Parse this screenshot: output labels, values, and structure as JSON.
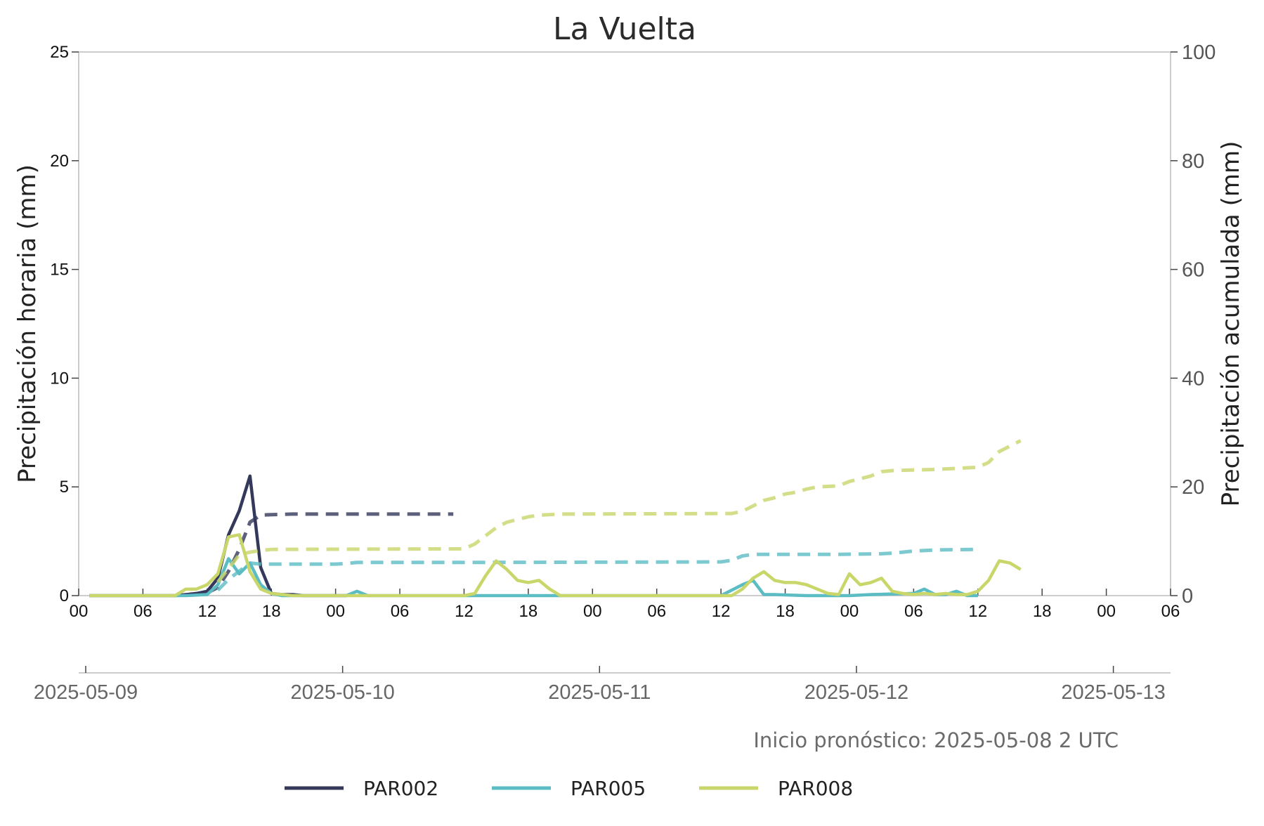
{
  "chart_data": {
    "type": "line",
    "title": "La Vuelta",
    "ylabel": "Precipitación horaria (mm)",
    "ylabel_right": "Precipitación acumulada (mm)",
    "ylim": [
      0,
      25
    ],
    "ylim_right": [
      0,
      100
    ],
    "yticks": [
      "0",
      "5",
      "10",
      "15",
      "20",
      "25"
    ],
    "yticks_right": [
      "0",
      "20",
      "40",
      "60",
      "80",
      "100"
    ],
    "xlim": [
      "2025-05-09 00:00",
      "2025-05-13 06:00"
    ],
    "xticks_hours": [
      "00",
      "06",
      "12",
      "18",
      "00",
      "06",
      "12",
      "18",
      "00",
      "06",
      "12",
      "18",
      "00",
      "06",
      "12",
      "18",
      "00",
      "06"
    ],
    "xticks_dates": [
      "2025-05-09",
      "2025-05-10",
      "2025-05-11",
      "2025-05-12",
      "2025-05-13"
    ],
    "note": "Inicio pronóstico: 2025-05-08 2 UTC",
    "grid": false,
    "legend_position": "bottom",
    "x_units": "hours after 2025-05-09 00:00",
    "series": [
      {
        "name": "PAR002",
        "color": "#34385a",
        "hourly": [
          [
            1,
            0
          ],
          [
            4,
            0
          ],
          [
            9,
            0
          ],
          [
            10,
            0.05
          ],
          [
            11,
            0.1
          ],
          [
            12,
            0.2
          ],
          [
            13,
            0.8
          ],
          [
            14,
            2.8
          ],
          [
            15,
            3.9
          ],
          [
            16,
            5.5
          ],
          [
            17,
            1.3
          ],
          [
            18,
            0.1
          ],
          [
            19,
            0.05
          ],
          [
            20,
            0.05
          ],
          [
            21,
            0
          ],
          [
            25,
            0
          ]
        ],
        "accum": [
          [
            12,
            0.5
          ],
          [
            13,
            1.5
          ],
          [
            14,
            4.5
          ],
          [
            15,
            8.5
          ],
          [
            16,
            13.5
          ],
          [
            17,
            14.8
          ],
          [
            18,
            14.9
          ],
          [
            20,
            15
          ],
          [
            35,
            15
          ]
        ]
      },
      {
        "name": "PAR005",
        "color": "#5bbcc4",
        "hourly": [
          [
            1,
            0
          ],
          [
            10,
            0
          ],
          [
            12,
            0.05
          ],
          [
            13,
            0.5
          ],
          [
            14,
            1.7
          ],
          [
            15,
            1.0
          ],
          [
            16,
            1.5
          ],
          [
            17,
            0.5
          ],
          [
            18,
            0.1
          ],
          [
            19,
            0
          ],
          [
            25,
            0
          ],
          [
            26,
            0.2
          ],
          [
            27,
            0
          ],
          [
            60,
            0
          ],
          [
            62,
            0.5
          ],
          [
            63,
            0.7
          ],
          [
            64,
            0.05
          ],
          [
            65,
            0.05
          ],
          [
            68,
            0
          ],
          [
            72,
            0
          ],
          [
            74,
            0.05
          ],
          [
            78,
            0.1
          ],
          [
            79,
            0.3
          ],
          [
            80,
            0.05
          ],
          [
            81,
            0.05
          ],
          [
            82,
            0.2
          ],
          [
            83,
            0
          ],
          [
            84,
            0
          ]
        ],
        "accum": [
          [
            13,
            1.0
          ],
          [
            14,
            3.0
          ],
          [
            15,
            4.5
          ],
          [
            16,
            6.0
          ],
          [
            17,
            5.8
          ],
          [
            24,
            5.8
          ],
          [
            25,
            5.9
          ],
          [
            26,
            6.1
          ],
          [
            36,
            6.1
          ],
          [
            60,
            6.2
          ],
          [
            61,
            6.5
          ],
          [
            62,
            7.3
          ],
          [
            63,
            7.6
          ],
          [
            71,
            7.6
          ],
          [
            75,
            7.7
          ],
          [
            76,
            7.8
          ],
          [
            77,
            8.0
          ],
          [
            78,
            8.2
          ],
          [
            80,
            8.4
          ],
          [
            84,
            8.5
          ]
        ]
      },
      {
        "name": "PAR008",
        "color": "#c9d66a",
        "hourly": [
          [
            1,
            0
          ],
          [
            9,
            0
          ],
          [
            10,
            0.3
          ],
          [
            11,
            0.3
          ],
          [
            12,
            0.5
          ],
          [
            13,
            1.0
          ],
          [
            14,
            2.7
          ],
          [
            15,
            2.8
          ],
          [
            16,
            1.1
          ],
          [
            17,
            0.3
          ],
          [
            18,
            0.1
          ],
          [
            19,
            0.05
          ],
          [
            20,
            0
          ],
          [
            36,
            0
          ],
          [
            37,
            0.1
          ],
          [
            38,
            0.9
          ],
          [
            39,
            1.6
          ],
          [
            40,
            1.2
          ],
          [
            41,
            0.7
          ],
          [
            42,
            0.6
          ],
          [
            43,
            0.7
          ],
          [
            44,
            0.3
          ],
          [
            45,
            0
          ],
          [
            61,
            0
          ],
          [
            62,
            0.3
          ],
          [
            63,
            0.8
          ],
          [
            64,
            1.1
          ],
          [
            65,
            0.7
          ],
          [
            66,
            0.6
          ],
          [
            67,
            0.6
          ],
          [
            68,
            0.5
          ],
          [
            69,
            0.3
          ],
          [
            70,
            0.1
          ],
          [
            71,
            0.05
          ],
          [
            72,
            1.0
          ],
          [
            73,
            0.5
          ],
          [
            74,
            0.6
          ],
          [
            75,
            0.8
          ],
          [
            76,
            0.2
          ],
          [
            77,
            0.1
          ],
          [
            78,
            0.05
          ],
          [
            79,
            0.1
          ],
          [
            80,
            0.05
          ],
          [
            81,
            0.1
          ],
          [
            82,
            0.05
          ],
          [
            83,
            0.05
          ],
          [
            84,
            0.2
          ],
          [
            85,
            0.7
          ],
          [
            86,
            1.6
          ],
          [
            87,
            1.5
          ],
          [
            88,
            1.2
          ]
        ],
        "accum": [
          [
            13,
            2.5
          ],
          [
            14,
            5.0
          ],
          [
            15,
            7.5
          ],
          [
            16,
            8.0
          ],
          [
            17,
            8.3
          ],
          [
            18,
            8.5
          ],
          [
            36,
            8.6
          ],
          [
            37,
            9.5
          ],
          [
            38,
            11.0
          ],
          [
            39,
            12.5
          ],
          [
            40,
            13.5
          ],
          [
            41,
            14.0
          ],
          [
            42,
            14.5
          ],
          [
            43,
            14.8
          ],
          [
            45,
            15.0
          ],
          [
            61,
            15.1
          ],
          [
            62,
            15.5
          ],
          [
            63,
            16.5
          ],
          [
            64,
            17.5
          ],
          [
            65,
            18.0
          ],
          [
            66,
            18.7
          ],
          [
            67,
            19.0
          ],
          [
            68,
            19.6
          ],
          [
            69,
            20.0
          ],
          [
            71,
            20.2
          ],
          [
            72,
            21.0
          ],
          [
            73,
            21.5
          ],
          [
            74,
            22.0
          ],
          [
            75,
            22.8
          ],
          [
            76,
            23.0
          ],
          [
            80,
            23.2
          ],
          [
            84,
            23.6
          ],
          [
            85,
            24.5
          ],
          [
            86,
            26.5
          ],
          [
            87,
            27.5
          ],
          [
            88,
            28.5
          ]
        ]
      }
    ]
  }
}
